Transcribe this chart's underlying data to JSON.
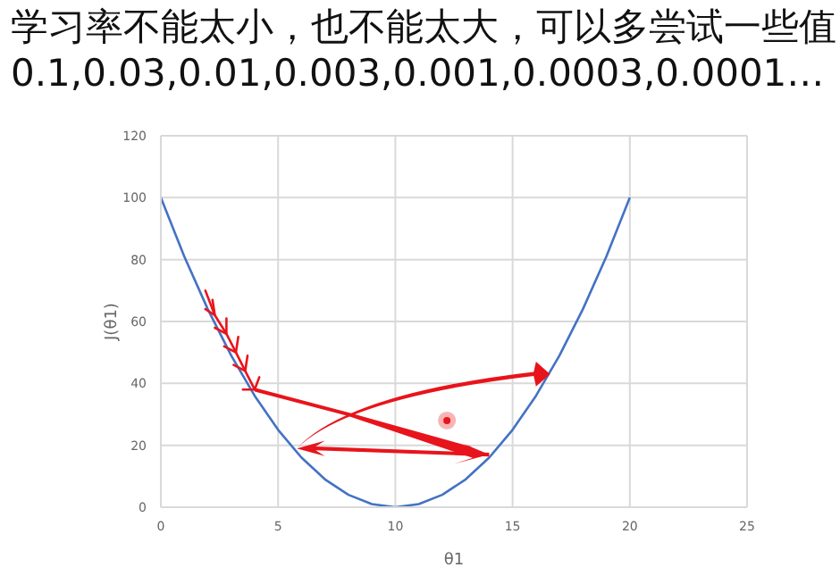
{
  "chart_data": {
    "type": "line",
    "title": "学习率不能太小，也不能太大，可以多尝试一些值",
    "subtitle": "0.1,0.03,0.01,0.003,0.001,0.0003,0.0001…",
    "xlabel": "θ1",
    "ylabel": "J(θ1)",
    "x": [
      0,
      1,
      2,
      3,
      4,
      5,
      6,
      7,
      8,
      9,
      10,
      11,
      12,
      13,
      14,
      15,
      16,
      17,
      18,
      19,
      20
    ],
    "series": [
      {
        "color": "#4472c4",
        "values": [
          100,
          81,
          64,
          49,
          36,
          25,
          16,
          9,
          4,
          1,
          0,
          1,
          4,
          9,
          16,
          25,
          36,
          49,
          64,
          81,
          100
        ]
      }
    ],
    "xlim": [
      0,
      25
    ],
    "xticks": [
      0,
      5,
      10,
      15,
      20,
      25
    ],
    "ylim": [
      0,
      120
    ],
    "yticks": [
      0,
      20,
      40,
      60,
      80,
      100,
      120
    ],
    "grid": true,
    "marker": "none",
    "line_style": "solid"
  }
}
